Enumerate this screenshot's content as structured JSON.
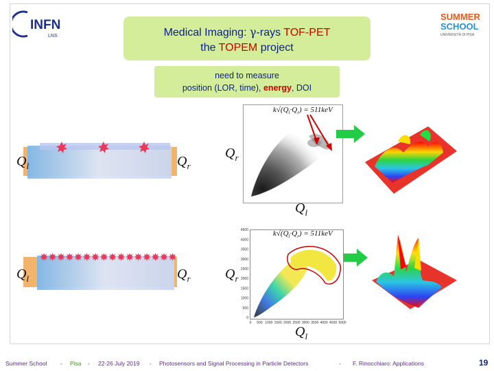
{
  "logo_infn": {
    "name": "INFN",
    "sub": "LNS"
  },
  "logo_summer": {
    "line1": "SUMMER",
    "line2": "SCHOOL",
    "sub": "UNIVERSITÀ DI PISA"
  },
  "title": {
    "l1_a": "Medical Imaging: ",
    "l1_gamma": "γ",
    "l1_b": "-rays ",
    "l1_red": "TOF-PET",
    "l2_a": "the ",
    "l2_red": "TOPEM",
    "l2_b": " project"
  },
  "need": {
    "line1": "need to measure",
    "line2_a": "position (LOR, time), ",
    "line2_energy": "energy",
    "line2_b": ", DOI"
  },
  "labels": {
    "ql": "Q",
    "ql_sub": "l",
    "qr": "Q",
    "qr_sub": "r"
  },
  "formula": "k√(Q  Q  ) = 511keV",
  "formula_parts": {
    "k": "k",
    "q1": "Q",
    "s1": "l",
    "q2": "Q",
    "s2": "r",
    "rhs": " = 511keV"
  },
  "scatter_bottom": {
    "y_ticks": [
      "0",
      "500",
      "1000",
      "1500",
      "2000",
      "2500",
      "3000",
      "3500",
      "4000",
      "4500"
    ],
    "x_ticks": [
      "0",
      "500",
      "1000",
      "1500",
      "2000",
      "2500",
      "3000",
      "3500",
      "4000",
      "4500",
      "5000"
    ]
  },
  "colors": {
    "title_bg": "#d3ed9a",
    "accent_red": "#cc0000",
    "navy": "#0b1f8c",
    "arrow_green": "#22cc44"
  },
  "footer": {
    "school": "Summer School",
    "sep1": "-",
    "pisa": "Pisa",
    "sep2": "-",
    "dates": "22-26 July 2019",
    "sep3": "-",
    "topic": "Photosensors and Signal Processing in Particle Detectors",
    "sep4": "-",
    "author": "F. Rinocchiaro: Applications",
    "page": "19"
  }
}
